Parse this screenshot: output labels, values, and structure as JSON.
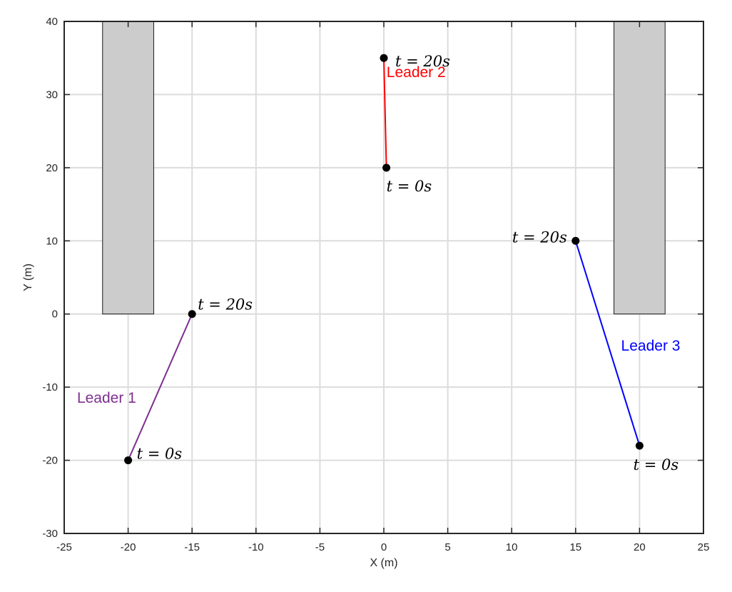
{
  "chart_data": {
    "type": "line",
    "xlabel": "X (m)",
    "ylabel": "Y (m)",
    "xlim": [
      -25,
      25
    ],
    "ylim": [
      -30,
      40
    ],
    "xticks": [
      -25,
      -20,
      -15,
      -10,
      -5,
      0,
      5,
      10,
      15,
      20,
      25
    ],
    "yticks": [
      -30,
      -20,
      -10,
      0,
      10,
      20,
      30,
      40
    ],
    "xtick_labels": [
      "-25",
      "-20",
      "-15",
      "-10",
      "-5",
      "0",
      "5",
      "10",
      "15",
      "20",
      "25"
    ],
    "ytick_labels": [
      "-30",
      "-20",
      "-10",
      "0",
      "10",
      "20",
      "30",
      "40"
    ],
    "grid": true,
    "obstacles": [
      {
        "x0": -22,
        "x1": -18,
        "y0": 0,
        "y1": 40,
        "color": "#cccccc"
      },
      {
        "x0": 18,
        "x1": 22,
        "y0": 0,
        "y1": 40,
        "color": "#cccccc"
      }
    ],
    "series": [
      {
        "name": "Leader 1",
        "color": "#7e2f8e",
        "start": {
          "x": -20,
          "y": -20,
          "label": "t = 0s"
        },
        "end": {
          "x": -15,
          "y": 0,
          "label": "t = 20s"
        }
      },
      {
        "name": "Leader 2",
        "color": "#ff0000",
        "start": {
          "x": 0.2,
          "y": 20,
          "label": "t = 0s"
        },
        "end": {
          "x": 0,
          "y": 35,
          "label": "t = 20s"
        }
      },
      {
        "name": "Leader 3",
        "color": "#0000ff",
        "start": {
          "x": 20,
          "y": -18,
          "label": "t = 0s"
        },
        "end": {
          "x": 15,
          "y": 10,
          "label": "t = 20s"
        }
      }
    ]
  }
}
